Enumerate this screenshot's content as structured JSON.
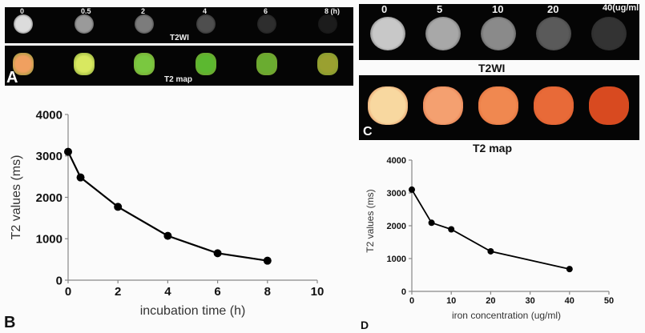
{
  "panel_a": {
    "letter": "A",
    "t2wi_caption": "T2WI",
    "t2map_caption": "T2 map",
    "time_labels": [
      "0",
      "0.5",
      "2",
      "4",
      "6",
      "8 (h)"
    ],
    "t2wi_intensity": [
      "#dcdcdc",
      "#9a9a9a",
      "#7c7c7c",
      "#4e4e4e",
      "#2e2e2e",
      "#1c1c1c"
    ],
    "t2map_colors": [
      "#f0a060",
      "#d8e860",
      "#7ac840",
      "#5cb830",
      "#6aac30",
      "#9aa030"
    ]
  },
  "panel_c": {
    "letter": "C",
    "t2wi_caption": "T2WI",
    "t2map_caption": "T2 map",
    "conc_labels": [
      "0",
      "5",
      "10",
      "20",
      "40(ug/ml"
    ],
    "t2wi_intensity": [
      "#c8c8c8",
      "#a8a8a8",
      "#8a8a8a",
      "#5a5a5a",
      "#333333"
    ],
    "t2map_colors": [
      "#f8d8a0",
      "#f4a070",
      "#f08850",
      "#e86a38",
      "#d84a20"
    ]
  },
  "chart_data": [
    {
      "panel": "B",
      "type": "line",
      "title": "",
      "xlabel": "incubation time (h)",
      "ylabel": "T2 values (ms)",
      "x": [
        0,
        0.5,
        2,
        4,
        6,
        8
      ],
      "series": [
        {
          "name": "T2 values",
          "values": [
            3100,
            2480,
            1770,
            1070,
            650,
            470
          ]
        }
      ],
      "xlim": [
        0,
        10
      ],
      "ylim": [
        0,
        4000
      ],
      "xticks": [
        0,
        2,
        4,
        6,
        8,
        10
      ],
      "yticks": [
        0,
        1000,
        2000,
        3000,
        4000
      ],
      "grid": false,
      "legend": null
    },
    {
      "panel": "D",
      "type": "line",
      "title": "",
      "xlabel": "iron concentration (ug/ml)",
      "ylabel": "T2 values (ms)",
      "x": [
        0,
        5,
        10,
        20,
        40
      ],
      "series": [
        {
          "name": "T2 values",
          "values": [
            3100,
            2090,
            1890,
            1220,
            680
          ]
        }
      ],
      "xlim": [
        0,
        50
      ],
      "ylim": [
        0,
        4000
      ],
      "xticks": [
        0,
        10,
        20,
        30,
        40,
        50
      ],
      "yticks": [
        0,
        1000,
        2000,
        3000,
        4000
      ],
      "grid": false,
      "legend": null
    }
  ],
  "panel_b": {
    "letter": "B"
  },
  "panel_d": {
    "letter": "D"
  }
}
